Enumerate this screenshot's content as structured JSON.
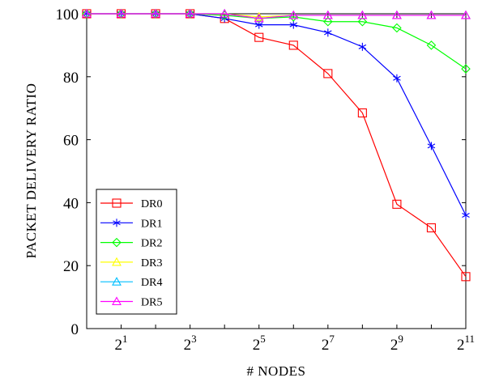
{
  "chart_data": {
    "type": "line",
    "xlabel": "# NODES",
    "ylabel": "PACKET DELIVERY RATIO",
    "x_scale": "log2",
    "x": [
      1,
      2,
      4,
      8,
      16,
      32,
      64,
      128,
      256,
      512,
      1024,
      2048
    ],
    "xlim": [
      1,
      2048
    ],
    "ylim": [
      0,
      100
    ],
    "x_ticks": [
      {
        "value": 2,
        "base": "2",
        "exp": "1"
      },
      {
        "value": 8,
        "base": "2",
        "exp": "3"
      },
      {
        "value": 32,
        "base": "2",
        "exp": "5"
      },
      {
        "value": 128,
        "base": "2",
        "exp": "7"
      },
      {
        "value": 512,
        "base": "2",
        "exp": "9"
      },
      {
        "value": 2048,
        "base": "2",
        "exp": "11"
      }
    ],
    "y_ticks": [
      "0",
      "20",
      "40",
      "60",
      "80",
      "100"
    ],
    "grid": false,
    "legend_position": "bottom-left",
    "series": [
      {
        "name": "DR0",
        "color": "#ff0000",
        "marker": "square",
        "values": [
          100,
          100,
          100,
          100,
          98.5,
          92.5,
          90,
          81,
          68.5,
          39.5,
          32,
          16.5
        ]
      },
      {
        "name": "DR1",
        "color": "#0000ff",
        "marker": "star",
        "values": [
          100,
          100,
          100,
          100,
          98.5,
          96.5,
          96.5,
          94,
          89.5,
          79.5,
          58,
          36
        ]
      },
      {
        "name": "DR2",
        "color": "#00ff00",
        "marker": "diamond",
        "values": [
          100,
          100,
          100,
          100,
          99.5,
          98.5,
          99,
          97.5,
          97.5,
          95.5,
          90,
          82.5
        ]
      },
      {
        "name": "DR3",
        "color": "#ffff00",
        "marker": "triangle",
        "values": [
          100,
          100,
          100,
          100,
          100,
          99,
          99.5,
          99.5,
          99.5,
          99.5,
          99.5,
          99.5
        ]
      },
      {
        "name": "DR4",
        "color": "#00bfff",
        "marker": "triangle",
        "values": [
          100,
          100,
          100,
          100,
          100,
          98.5,
          99.5,
          99.5,
          99.5,
          99.5,
          99.5,
          99.5
        ]
      },
      {
        "name": "DR5",
        "color": "#ff00ff",
        "marker": "triangle",
        "values": [
          100,
          100,
          100,
          100,
          100,
          98.5,
          99.5,
          99.5,
          99.5,
          99.5,
          99.5,
          99.5
        ]
      }
    ]
  }
}
